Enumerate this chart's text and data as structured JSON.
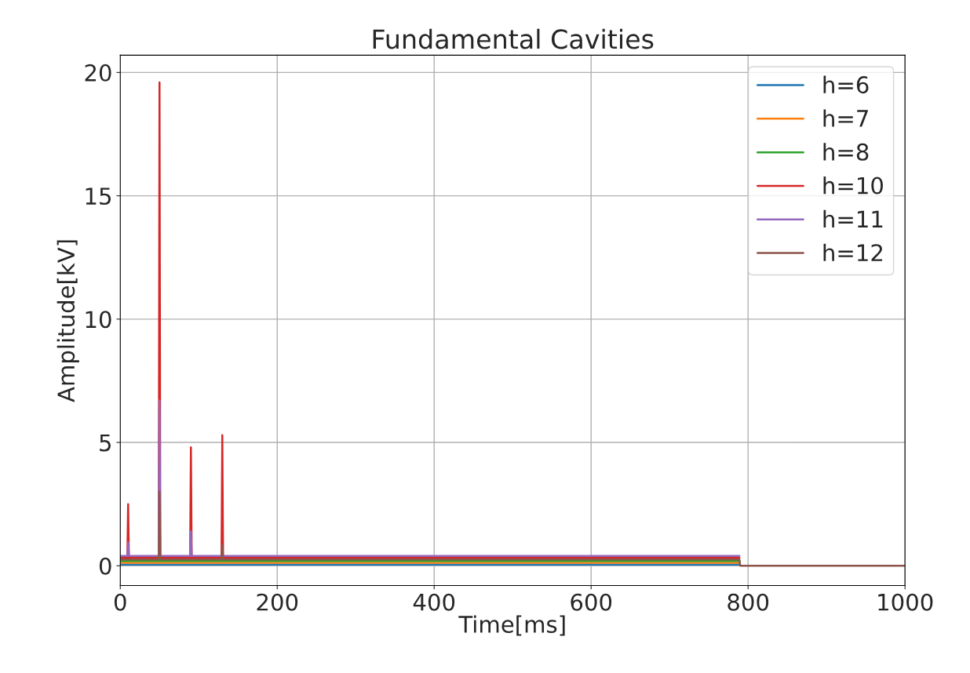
{
  "chart_data": {
    "type": "line",
    "title": "Fundamental Cavities",
    "xlabel": "Time[ms]",
    "ylabel": "Amplitude[kV]",
    "x": [
      0,
      5,
      9,
      10,
      11,
      20,
      30,
      40,
      49,
      50,
      51,
      60,
      70,
      80,
      89,
      90,
      91,
      100,
      110,
      120,
      129,
      130,
      131,
      150,
      200,
      250,
      300,
      350,
      400,
      450,
      500,
      550,
      600,
      650,
      700,
      750,
      789,
      790,
      800,
      1000
    ],
    "series": [
      {
        "name": "h=6",
        "color": "#1f77b4",
        "values": [
          0.05,
          0.05,
          0.05,
          0.05,
          0.05,
          0.05,
          0.05,
          0.05,
          0.05,
          0.05,
          0.05,
          0.05,
          0.05,
          0.05,
          0.05,
          0.05,
          0.05,
          0.05,
          0.05,
          0.05,
          0.05,
          0.05,
          0.05,
          0.05,
          0.05,
          0.05,
          0.05,
          0.05,
          0.05,
          0.05,
          0.05,
          0.05,
          0.05,
          0.05,
          0.05,
          0.05,
          0.05,
          null,
          null,
          null
        ]
      },
      {
        "name": "h=7",
        "color": "#ff7f0e",
        "values": [
          0.12,
          0.12,
          0.12,
          0.12,
          0.12,
          0.12,
          0.12,
          0.12,
          0.12,
          0.12,
          0.12,
          0.12,
          0.12,
          0.12,
          0.12,
          0.12,
          0.12,
          0.12,
          0.12,
          0.12,
          0.12,
          0.12,
          0.12,
          0.12,
          0.12,
          0.12,
          0.12,
          0.12,
          0.12,
          0.12,
          0.12,
          0.12,
          0.12,
          0.12,
          0.12,
          0.12,
          0.12,
          null,
          null,
          null
        ]
      },
      {
        "name": "h=8",
        "color": "#2ca02c",
        "values": [
          0.19,
          0.19,
          0.19,
          0.19,
          0.19,
          0.19,
          0.19,
          0.19,
          0.19,
          0.19,
          0.19,
          0.19,
          0.19,
          0.19,
          0.19,
          0.19,
          0.19,
          0.19,
          0.19,
          0.19,
          0.19,
          0.19,
          0.19,
          0.19,
          0.19,
          0.19,
          0.19,
          0.19,
          0.19,
          0.19,
          0.19,
          0.19,
          0.19,
          0.19,
          0.19,
          0.19,
          0.19,
          null,
          null,
          null
        ]
      },
      {
        "name": "h=10",
        "color": "#d62728",
        "values": [
          0.33,
          0.33,
          0.33,
          2.5,
          0.33,
          0.33,
          0.33,
          0.33,
          0.33,
          19.6,
          0.33,
          0.33,
          0.33,
          0.33,
          0.33,
          4.8,
          0.33,
          0.33,
          0.33,
          0.33,
          0.33,
          5.3,
          0.33,
          0.33,
          0.33,
          0.33,
          0.33,
          0.33,
          0.33,
          0.33,
          0.33,
          0.33,
          0.33,
          0.33,
          0.33,
          0.33,
          0.33,
          null,
          null,
          null
        ]
      },
      {
        "name": "h=11",
        "color": "#9467bd",
        "values": [
          0.4,
          0.4,
          0.4,
          0.95,
          0.4,
          0.4,
          0.4,
          0.4,
          0.4,
          6.7,
          0.4,
          0.4,
          0.4,
          0.4,
          0.4,
          1.4,
          0.4,
          0.4,
          0.4,
          0.4,
          0.4,
          0.4,
          0.4,
          0.4,
          0.4,
          0.4,
          0.4,
          0.4,
          0.4,
          0.4,
          0.4,
          0.4,
          0.4,
          0.4,
          0.4,
          0.4,
          0.4,
          null,
          null,
          null
        ]
      },
      {
        "name": "h=12",
        "color": "#8c564b",
        "values": [
          0.26,
          0.26,
          0.26,
          0.26,
          0.26,
          0.26,
          0.26,
          0.26,
          0.26,
          3.0,
          0.26,
          0.26,
          0.26,
          0.26,
          0.26,
          0.26,
          0.26,
          0.26,
          0.26,
          0.26,
          0.26,
          0.85,
          0.26,
          0.26,
          0.26,
          0.26,
          0.26,
          0.26,
          0.26,
          0.26,
          0.26,
          0.26,
          0.26,
          0.26,
          0.26,
          0.26,
          0.26,
          0.0,
          0.0,
          0.0
        ]
      }
    ],
    "xlim": [
      0,
      1000
    ],
    "xticks": [
      0,
      200,
      400,
      600,
      800,
      1000
    ],
    "ylim": [
      -0.8,
      20.7
    ],
    "yticks": [
      0,
      5,
      10,
      15,
      20
    ],
    "grid": true,
    "legend": "top right"
  }
}
